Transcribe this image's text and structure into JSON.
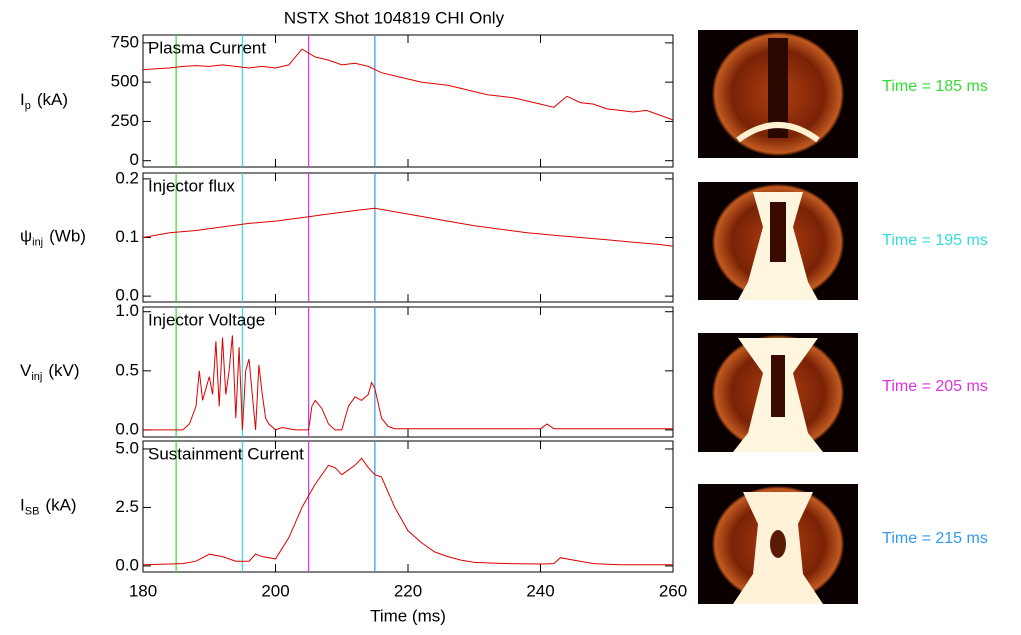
{
  "title": "NSTX Shot 104819 CHI Only",
  "time_markers": [
    {
      "x": 185,
      "color": "#33dd33",
      "label": "Time = 185 ms"
    },
    {
      "x": 195,
      "color": "#33dddd",
      "label": "Time = 195 ms"
    },
    {
      "x": 205,
      "color": "#dd33dd",
      "label": "Time = 205 ms"
    },
    {
      "x": 215,
      "color": "#3399ee",
      "label": "Time = 215 ms"
    }
  ],
  "chart_data": [
    {
      "type": "line",
      "label": "Plasma Current",
      "y_label": {
        "symbol": "I",
        "sub": "p",
        "unit": "(kA)"
      },
      "color": "#dd0000",
      "x": [
        180,
        182,
        184,
        186,
        188,
        190,
        192,
        194,
        196,
        198,
        200,
        202,
        204,
        206,
        208,
        210,
        212,
        214,
        216,
        218,
        220,
        222,
        224,
        226,
        228,
        230,
        232,
        234,
        236,
        238,
        240,
        242,
        244,
        246,
        248,
        250,
        252,
        254,
        256,
        258,
        260
      ],
      "values": [
        580,
        585,
        590,
        600,
        605,
        600,
        610,
        600,
        590,
        600,
        590,
        610,
        710,
        660,
        640,
        610,
        620,
        600,
        560,
        540,
        520,
        500,
        490,
        480,
        460,
        440,
        420,
        410,
        400,
        380,
        360,
        340,
        410,
        370,
        360,
        330,
        320,
        310,
        320,
        290,
        260
      ],
      "xlim": [
        180,
        260
      ],
      "xticks": [
        180,
        200,
        220,
        240,
        260
      ],
      "ylim": [
        -40,
        800
      ],
      "yticks": [
        0,
        250,
        500,
        750
      ]
    },
    {
      "type": "line",
      "label": "Injector flux",
      "y_label": {
        "symbol": "ψ",
        "sub": "inj",
        "unit": "(Wb)"
      },
      "color": "#dd0000",
      "x": [
        180,
        184,
        188,
        192,
        196,
        200,
        204,
        208,
        212,
        215,
        218,
        222,
        226,
        230,
        234,
        238,
        242,
        246,
        250,
        254,
        258,
        260
      ],
      "values": [
        0.1,
        0.108,
        0.112,
        0.118,
        0.124,
        0.128,
        0.134,
        0.14,
        0.146,
        0.15,
        0.144,
        0.136,
        0.128,
        0.12,
        0.114,
        0.108,
        0.104,
        0.1,
        0.096,
        0.092,
        0.088,
        0.085
      ],
      "xlim": [
        180,
        260
      ],
      "xticks": [
        180,
        200,
        220,
        240,
        260
      ],
      "ylim": [
        -0.01,
        0.21
      ],
      "yticks": [
        {
          "value": 0,
          "label": "0.0"
        },
        0.1,
        0.2
      ]
    },
    {
      "type": "line",
      "label": "Injector Voltage",
      "y_label": {
        "symbol": "V",
        "sub": "inj",
        "unit": "(kV)"
      },
      "color": "#dd0000",
      "x": [
        180,
        186,
        187,
        188,
        188.5,
        189,
        190,
        190.5,
        191,
        191.5,
        192,
        192.5,
        193,
        193.5,
        194,
        194.5,
        195,
        195.5,
        196,
        196.5,
        197,
        197.5,
        198,
        198.5,
        199,
        200,
        201,
        203,
        205,
        205.5,
        206,
        207,
        208,
        209,
        210,
        211,
        212,
        213,
        214,
        214.5,
        215,
        216,
        217,
        218,
        240,
        241,
        242,
        260
      ],
      "values": [
        0,
        0,
        0.05,
        0.2,
        0.5,
        0.25,
        0.45,
        0.3,
        0.75,
        0.2,
        0.78,
        0.3,
        0.5,
        0.8,
        0.1,
        0.7,
        0,
        0.5,
        0.6,
        0.3,
        0,
        0.55,
        0.3,
        0.1,
        0.05,
        0,
        0.02,
        0,
        0,
        0.2,
        0.25,
        0.18,
        0.05,
        0,
        0,
        0.2,
        0.28,
        0.25,
        0.3,
        0.4,
        0.35,
        0.1,
        0.03,
        0.01,
        0.01,
        0.05,
        0.01,
        0.01
      ],
      "xlim": [
        180,
        260
      ],
      "xticks": [
        180,
        200,
        220,
        240,
        260
      ],
      "ylim": [
        -0.06,
        1.04
      ],
      "yticks": [
        {
          "value": 0,
          "label": "0.0"
        },
        0.5,
        {
          "value": 1,
          "label": "1.0"
        }
      ]
    },
    {
      "type": "line",
      "label": "Sustainment Current",
      "y_label": {
        "symbol": "I",
        "sub": "SB",
        "unit": "(kA)"
      },
      "x_label": "Time (ms)",
      "color": "#dd0000",
      "x": [
        180,
        186,
        188,
        190,
        192,
        194,
        196,
        197,
        198,
        200,
        202,
        204,
        206,
        208,
        209,
        210,
        212,
        213,
        214,
        215,
        216,
        218,
        220,
        222,
        224,
        226,
        228,
        230,
        235,
        240,
        242,
        243,
        245,
        248,
        252,
        260
      ],
      "values": [
        0.05,
        0.1,
        0.2,
        0.5,
        0.4,
        0.2,
        0.2,
        0.5,
        0.4,
        0.3,
        1.2,
        2.5,
        3.5,
        4.3,
        4.2,
        3.9,
        4.3,
        4.6,
        4.2,
        3.9,
        3.8,
        2.5,
        1.5,
        1.0,
        0.6,
        0.4,
        0.25,
        0.15,
        0.1,
        0.08,
        0.1,
        0.35,
        0.25,
        0.1,
        0.05,
        0.05
      ],
      "xlim": [
        180,
        260
      ],
      "xticks": [
        180,
        200,
        220,
        240,
        260
      ],
      "ylim": [
        -0.26,
        5.34
      ],
      "yticks": [
        {
          "value": 0,
          "label": "0.0"
        },
        2.5,
        {
          "value": 5,
          "label": "5.0"
        }
      ]
    }
  ]
}
